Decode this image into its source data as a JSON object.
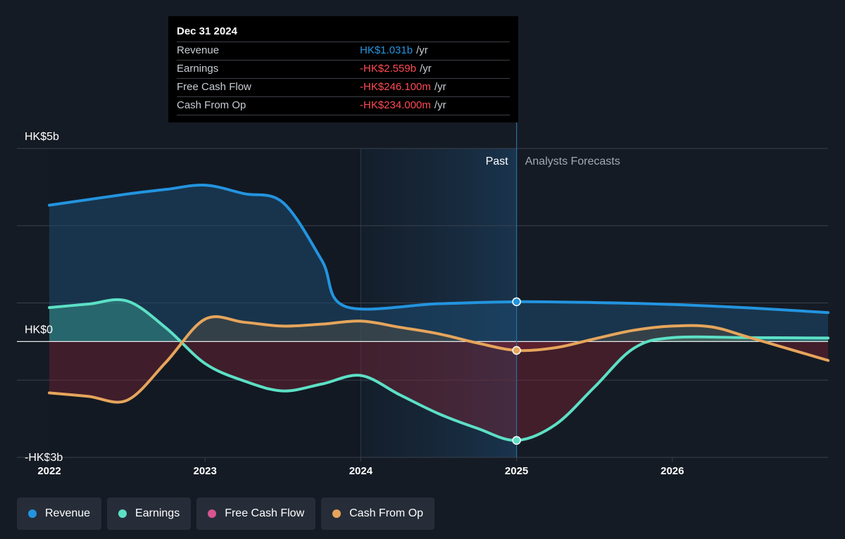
{
  "tooltip": {
    "date": "Dec 31 2024",
    "rows": [
      {
        "name": "Revenue",
        "value": "HK$1.031b",
        "unit": "/yr",
        "color": "#2394df"
      },
      {
        "name": "Earnings",
        "value": "-HK$2.559b",
        "unit": "/yr",
        "color": "#ff4a55"
      },
      {
        "name": "Free Cash Flow",
        "value": "-HK$246.100m",
        "unit": "/yr",
        "color": "#ff4a55"
      },
      {
        "name": "Cash From Op",
        "value": "-HK$234.000m",
        "unit": "/yr",
        "color": "#ff4a55"
      }
    ]
  },
  "regions": {
    "past": "Past",
    "forecast": "Analysts Forecasts"
  },
  "legend": [
    {
      "label": "Revenue",
      "color": "#2394df"
    },
    {
      "label": "Earnings",
      "color": "#5ce0c6"
    },
    {
      "label": "Free Cash Flow",
      "color": "#d55591"
    },
    {
      "label": "Cash From Op",
      "color": "#e6a55b"
    }
  ],
  "chart_data": {
    "type": "line",
    "y_unit": "HK$ billions",
    "y_tick_labels": [
      {
        "value": 5,
        "label": "HK$5b"
      },
      {
        "value": 0,
        "label": "HK$0"
      },
      {
        "value": -3,
        "label": "-HK$3b"
      }
    ],
    "ylim": [
      -3,
      5
    ],
    "xlim": [
      2022,
      2027
    ],
    "x_ticks": [
      2022,
      2023,
      2024,
      2025,
      2026
    ],
    "past_end": 2025,
    "grid": true,
    "highlight_x": 2024.99,
    "series": [
      {
        "name": "Revenue",
        "color": "#2394df",
        "fill": true,
        "points": [
          [
            2022,
            3.53
          ],
          [
            2022.5,
            3.82
          ],
          [
            2022.75,
            3.94
          ],
          [
            2023,
            4.05
          ],
          [
            2023.25,
            3.83
          ],
          [
            2023.5,
            3.6
          ],
          [
            2023.75,
            2.1
          ],
          [
            2023.9,
            0.91
          ],
          [
            2024.5,
            0.98
          ],
          [
            2025,
            1.03
          ],
          [
            2025.5,
            1.01
          ],
          [
            2026,
            0.96
          ],
          [
            2026.5,
            0.87
          ],
          [
            2027,
            0.75
          ]
        ]
      },
      {
        "name": "Earnings",
        "color": "#5ce0c6",
        "fill": true,
        "points": [
          [
            2022,
            0.88
          ],
          [
            2022.25,
            0.97
          ],
          [
            2022.5,
            1.05
          ],
          [
            2022.75,
            0.35
          ],
          [
            2023,
            -0.57
          ],
          [
            2023.25,
            -1.02
          ],
          [
            2023.5,
            -1.28
          ],
          [
            2023.75,
            -1.1
          ],
          [
            2024,
            -0.88
          ],
          [
            2024.25,
            -1.38
          ],
          [
            2024.5,
            -1.87
          ],
          [
            2024.75,
            -2.25
          ],
          [
            2025,
            -2.56
          ],
          [
            2025.25,
            -2.15
          ],
          [
            2025.5,
            -1.18
          ],
          [
            2025.75,
            -0.18
          ],
          [
            2026,
            0.1
          ],
          [
            2026.5,
            0.1
          ],
          [
            2027,
            0.09
          ]
        ]
      },
      {
        "name": "Free Cash Flow",
        "color": "#d55591",
        "fill": false,
        "points": []
      },
      {
        "name": "Cash From Op",
        "color": "#e6a55b",
        "fill": true,
        "points": [
          [
            2022,
            -1.33
          ],
          [
            2022.25,
            -1.42
          ],
          [
            2022.5,
            -1.52
          ],
          [
            2022.75,
            -0.53
          ],
          [
            2023,
            0.58
          ],
          [
            2023.25,
            0.5
          ],
          [
            2023.5,
            0.4
          ],
          [
            2023.75,
            0.45
          ],
          [
            2024,
            0.53
          ],
          [
            2024.25,
            0.37
          ],
          [
            2024.5,
            0.2
          ],
          [
            2024.75,
            -0.04
          ],
          [
            2025,
            -0.23
          ],
          [
            2025.25,
            -0.16
          ],
          [
            2025.5,
            0.07
          ],
          [
            2025.75,
            0.29
          ],
          [
            2026,
            0.4
          ],
          [
            2026.25,
            0.38
          ],
          [
            2026.5,
            0.1
          ],
          [
            2027,
            -0.49
          ]
        ]
      }
    ]
  }
}
